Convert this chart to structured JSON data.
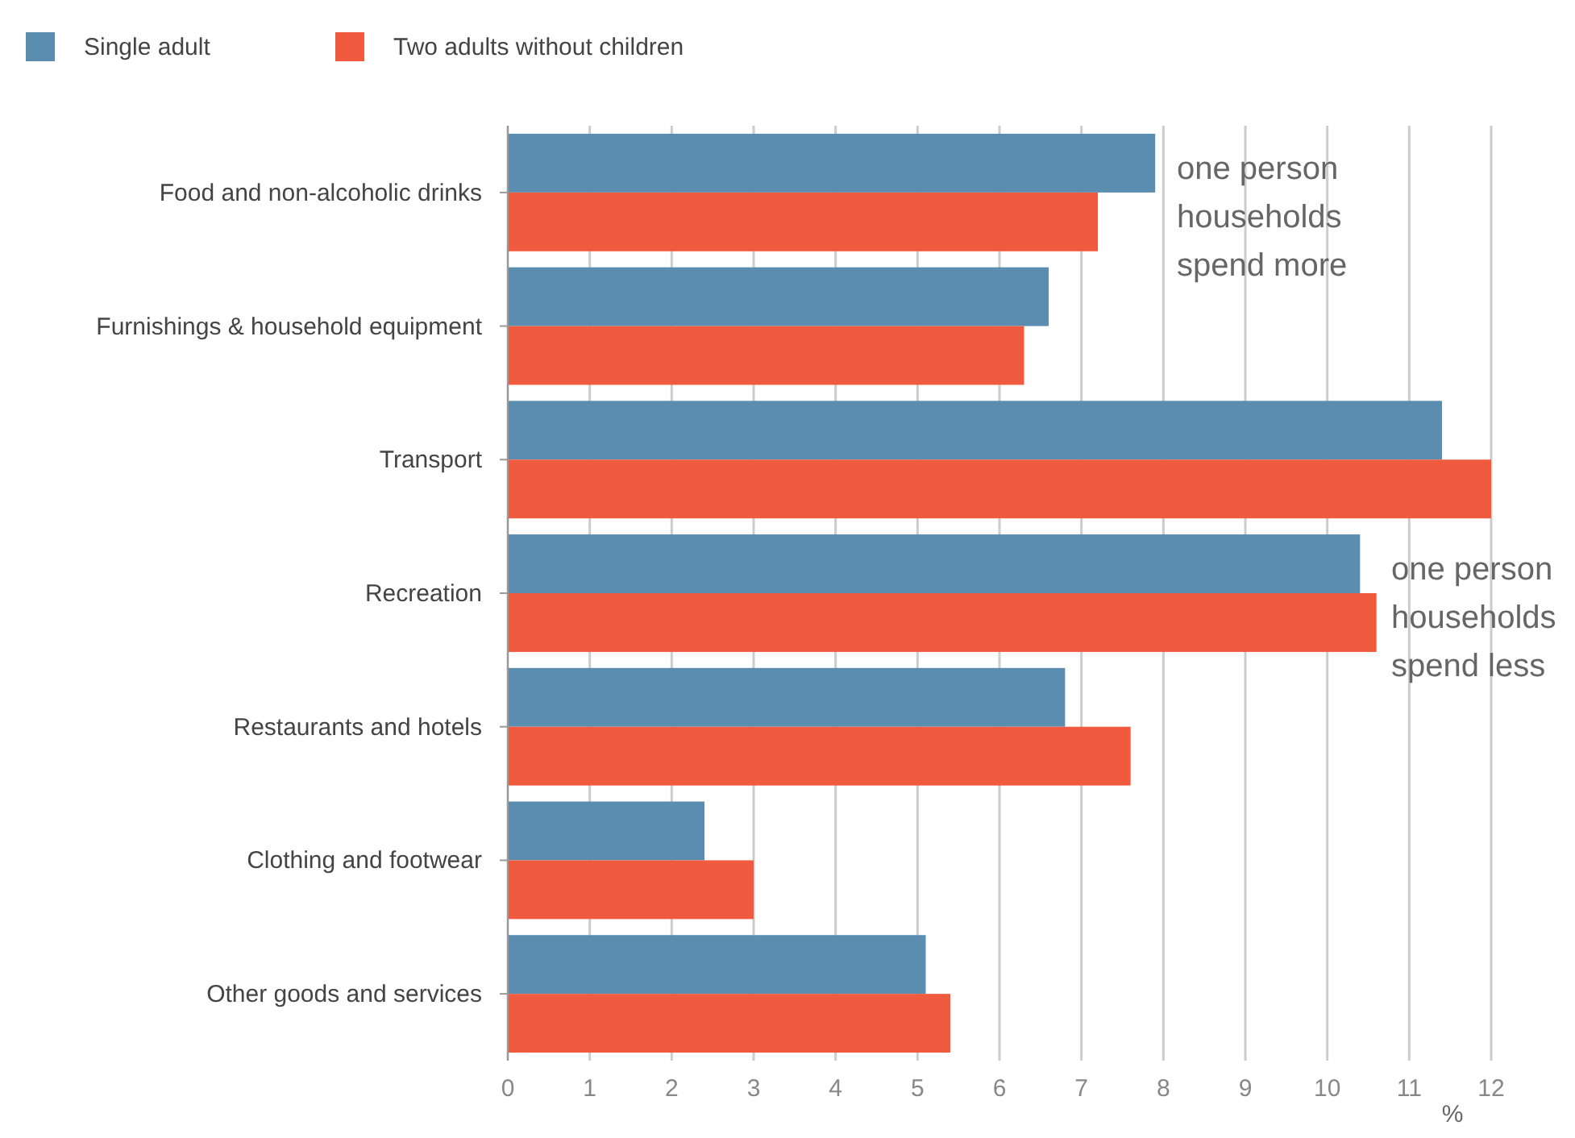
{
  "chart_data": {
    "type": "bar",
    "orientation": "horizontal",
    "categories": [
      "Food and non-alcoholic drinks",
      "Furnishings & household equipment",
      "Transport",
      "Recreation",
      "Restaurants and hotels",
      "Clothing and footwear",
      "Other goods and services"
    ],
    "series": [
      {
        "name": "Single adult",
        "color": "#5b8db0",
        "values": [
          7.9,
          6.6,
          11.4,
          10.4,
          6.8,
          2.4,
          5.1
        ]
      },
      {
        "name": "Two adults without children",
        "color": "#f05a3f",
        "values": [
          7.2,
          6.3,
          12.0,
          10.6,
          7.6,
          3.0,
          5.4
        ]
      }
    ],
    "xlim": [
      0,
      12
    ],
    "xticks": [
      0,
      1,
      2,
      3,
      4,
      5,
      6,
      7,
      8,
      9,
      10,
      11,
      12
    ],
    "xlabel": "%",
    "grid": "x",
    "legend": "top left",
    "annotations": [
      "one person households spend more",
      "one person households spend less"
    ]
  }
}
